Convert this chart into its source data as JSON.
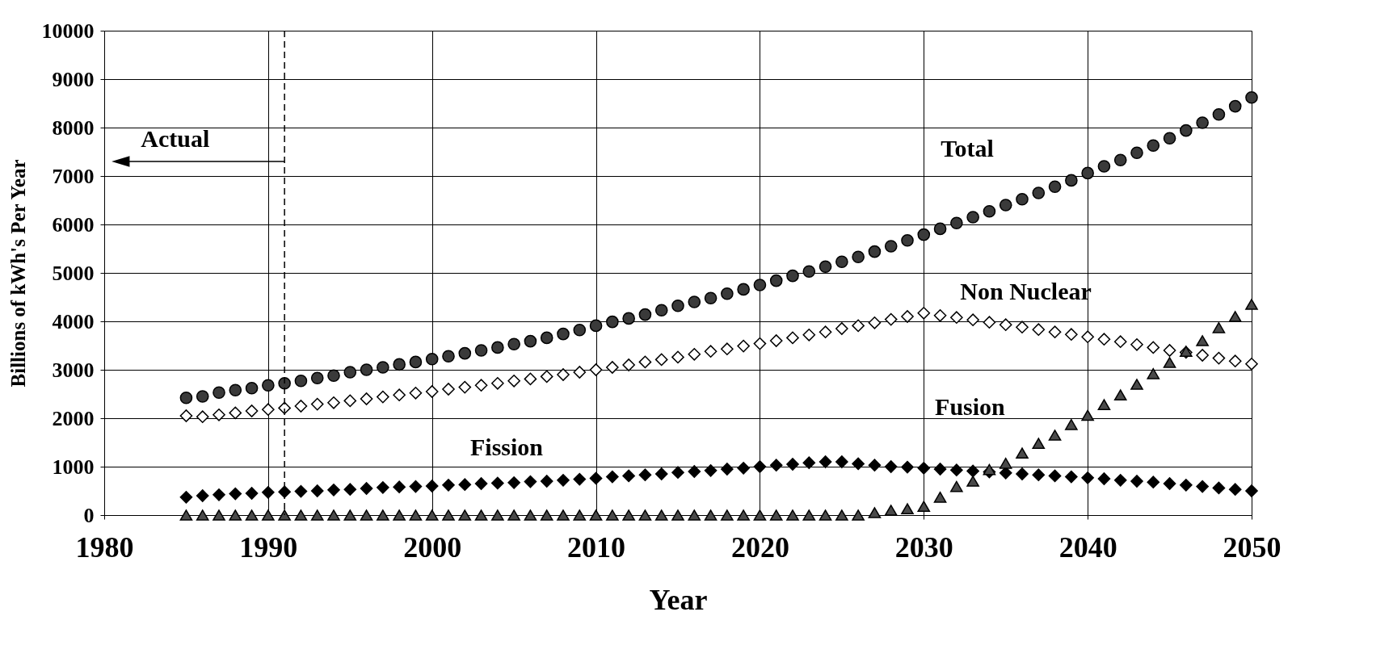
{
  "chart_data": {
    "type": "scatter",
    "xlabel": "Year",
    "ylabel": "Billions of kWh's Per Year",
    "x": [
      1985,
      1986,
      1987,
      1988,
      1989,
      1990,
      1991,
      1992,
      1993,
      1994,
      1995,
      1996,
      1997,
      1998,
      1999,
      2000,
      2001,
      2002,
      2003,
      2004,
      2005,
      2006,
      2007,
      2008,
      2009,
      2010,
      2011,
      2012,
      2013,
      2014,
      2015,
      2016,
      2017,
      2018,
      2019,
      2020,
      2021,
      2022,
      2023,
      2024,
      2025,
      2026,
      2027,
      2028,
      2029,
      2030,
      2031,
      2032,
      2033,
      2034,
      2035,
      2036,
      2037,
      2038,
      2039,
      2040,
      2041,
      2042,
      2043,
      2044,
      2045,
      2046,
      2047,
      2048,
      2049,
      2050
    ],
    "series": [
      {
        "name": "Total",
        "color": "#3a3a3a",
        "marker": "circle",
        "values": [
          2420,
          2450,
          2530,
          2580,
          2620,
          2680,
          2720,
          2770,
          2830,
          2880,
          2950,
          3000,
          3050,
          3110,
          3160,
          3220,
          3280,
          3340,
          3400,
          3460,
          3530,
          3590,
          3660,
          3740,
          3820,
          3910,
          3990,
          4060,
          4140,
          4230,
          4320,
          4400,
          4480,
          4570,
          4660,
          4750,
          4840,
          4940,
          5030,
          5130,
          5230,
          5330,
          5440,
          5550,
          5670,
          5790,
          5910,
          6030,
          6150,
          6270,
          6400,
          6520,
          6650,
          6780,
          6910,
          7060,
          7200,
          7330,
          7480,
          7630,
          7780,
          7940,
          8100,
          8270,
          8440,
          8620
        ]
      },
      {
        "name": "Non Nuclear",
        "color": "#ffffff",
        "marker": "diamond",
        "values": [
          2050,
          2030,
          2070,
          2110,
          2150,
          2180,
          2210,
          2250,
          2290,
          2320,
          2360,
          2400,
          2440,
          2480,
          2520,
          2550,
          2600,
          2640,
          2680,
          2720,
          2770,
          2810,
          2860,
          2900,
          2950,
          3000,
          3050,
          3100,
          3160,
          3210,
          3260,
          3320,
          3380,
          3430,
          3490,
          3540,
          3600,
          3660,
          3720,
          3780,
          3850,
          3910,
          3970,
          4040,
          4100,
          4170,
          4120,
          4080,
          4030,
          3980,
          3930,
          3880,
          3830,
          3780,
          3730,
          3680,
          3630,
          3580,
          3520,
          3460,
          3400,
          3360,
          3300,
          3240,
          3180,
          3120
        ]
      },
      {
        "name": "Fission",
        "color": "#000000",
        "marker": "diamond",
        "values": [
          370,
          400,
          420,
          440,
          450,
          470,
          480,
          490,
          500,
          520,
          530,
          550,
          570,
          580,
          590,
          600,
          620,
          630,
          650,
          660,
          670,
          690,
          700,
          720,
          740,
          760,
          790,
          810,
          830,
          850,
          880,
          900,
          920,
          950,
          970,
          1000,
          1030,
          1050,
          1080,
          1100,
          1100,
          1060,
          1030,
          1000,
          990,
          970,
          950,
          930,
          910,
          890,
          870,
          850,
          830,
          810,
          790,
          770,
          750,
          720,
          700,
          680,
          650,
          620,
          590,
          560,
          530,
          500
        ]
      },
      {
        "name": "Fusion",
        "color": "#4a4a4a",
        "marker": "triangle",
        "values": [
          0,
          0,
          0,
          0,
          0,
          0,
          0,
          0,
          0,
          0,
          0,
          0,
          0,
          0,
          0,
          0,
          0,
          0,
          0,
          0,
          0,
          0,
          0,
          0,
          0,
          0,
          0,
          0,
          0,
          0,
          0,
          0,
          0,
          0,
          0,
          0,
          0,
          0,
          0,
          0,
          0,
          0,
          50,
          100,
          130,
          180,
          370,
          590,
          700,
          940,
          1070,
          1280,
          1480,
          1650,
          1870,
          2060,
          2280,
          2480,
          2700,
          2920,
          3150,
          3380,
          3600,
          3870,
          4100,
          4350
        ]
      }
    ],
    "xlim": [
      1980,
      2050
    ],
    "xticks": [
      1980,
      1990,
      2000,
      2010,
      2020,
      2030,
      2040,
      2050
    ],
    "ylim": [
      0,
      10000
    ],
    "yticks": [
      0,
      1000,
      2000,
      3000,
      4000,
      5000,
      6000,
      7000,
      8000,
      9000,
      10000
    ],
    "grid": true,
    "ref_lines": [
      {
        "axis": "x",
        "value": 1991,
        "line_style": "dashed"
      }
    ],
    "annotations": [
      {
        "text": "Actual",
        "x": 1981,
        "y": 7300
      }
    ]
  }
}
